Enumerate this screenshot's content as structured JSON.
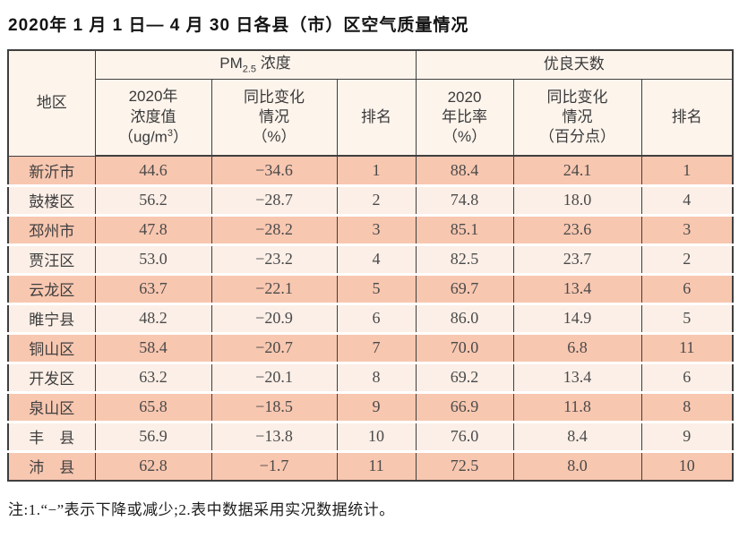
{
  "title": "2020年 1 月 1 日— 4 月 30 日各县（市）区空气质量情况",
  "header_display": {
    "region": "地区",
    "pm_group": {
      "base": "PM",
      "sub": "2.5",
      "rest": " 浓度"
    },
    "pm_value": {
      "l1": "2020年",
      "l2": "浓度值",
      "l3_pre": "（ug/m",
      "l3_sup": "3",
      "l3_post": "）"
    },
    "pm_change": {
      "l1": "同比变化",
      "l2": "情况",
      "l3": "（%）"
    },
    "pm_rank": "排名",
    "good_group": "优良天数",
    "good_rate": {
      "l1": "2020",
      "l2": "年比率",
      "l3": "（%）"
    },
    "good_change": {
      "l1": "同比变化",
      "l2": "情况",
      "l3": "（百分点）"
    },
    "good_rank": "排名"
  },
  "chart_data": {
    "type": "table",
    "title": "2020年1月1日—4月30日各县（市）区空气质量情况",
    "column_groups": [
      {
        "label": "PM2.5浓度",
        "columns": [
          1,
          2,
          3
        ]
      },
      {
        "label": "优良天数",
        "columns": [
          4,
          5,
          6
        ]
      }
    ],
    "columns": [
      "地区",
      "2020年浓度值（ug/m3）",
      "同比变化情况（%）",
      "排名",
      "2020年比率（%）",
      "同比变化情况（百分点）",
      "排名"
    ],
    "rows": [
      [
        "新沂市",
        "44.6",
        "−34.6",
        "1",
        "88.4",
        "24.1",
        "1"
      ],
      [
        "鼓楼区",
        "56.2",
        "−28.7",
        "2",
        "74.8",
        "18.0",
        "4"
      ],
      [
        "邳州市",
        "47.8",
        "−28.2",
        "3",
        "85.1",
        "23.6",
        "3"
      ],
      [
        "贾汪区",
        "53.0",
        "−23.2",
        "4",
        "82.5",
        "23.7",
        "2"
      ],
      [
        "云龙区",
        "63.7",
        "−22.1",
        "5",
        "69.7",
        "13.4",
        "6"
      ],
      [
        "睢宁县",
        "48.2",
        "−20.9",
        "6",
        "86.0",
        "14.9",
        "5"
      ],
      [
        "铜山区",
        "58.4",
        "−20.7",
        "7",
        "70.0",
        "6.8",
        "11"
      ],
      [
        "开发区",
        "63.2",
        "−20.1",
        "8",
        "69.2",
        "13.4",
        "6"
      ],
      [
        "泉山区",
        "65.8",
        "−18.5",
        "9",
        "66.9",
        "11.8",
        "8"
      ],
      [
        "丰　县",
        "56.9",
        "−13.8",
        "10",
        "76.0",
        "8.4",
        "9"
      ],
      [
        "沛　县",
        "62.8",
        "−1.7",
        "11",
        "72.5",
        "8.0",
        "10"
      ]
    ]
  },
  "note": "注:1.“−”表示下降或减少;2.表中数据采用实况数据统计。",
  "colors": {
    "row_salmon": "#f8c7b0",
    "row_light": "#fcefe7",
    "header_bg": "#fdf4ec",
    "border": "#3f3f3f"
  }
}
